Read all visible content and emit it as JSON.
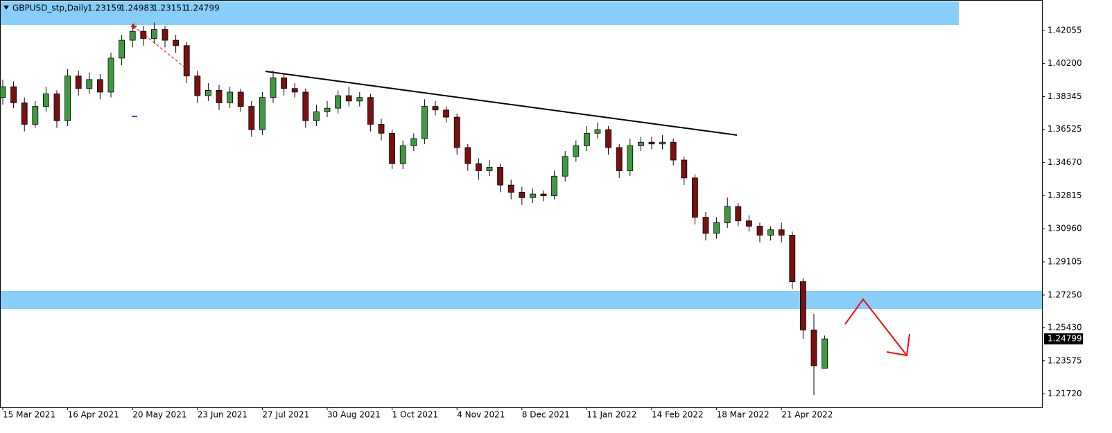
{
  "chart_data": {
    "type": "candlestick",
    "title": "GBPUSD_stp,Daily",
    "categories": [
      "15 Mar 2021",
      null,
      null,
      null,
      null,
      null,
      "16 Apr 2021",
      null,
      null,
      null,
      null,
      null,
      "20 May 2021",
      null,
      null,
      null,
      null,
      null,
      "23 Jun 2021",
      null,
      null,
      null,
      null,
      null,
      "27 Jul 2021",
      null,
      null,
      null,
      null,
      null,
      "30 Aug 2021",
      null,
      null,
      null,
      null,
      null,
      "1 Oct 2021",
      null,
      null,
      null,
      null,
      null,
      "4 Nov 2021",
      null,
      null,
      null,
      null,
      null,
      "8 Dec 2021",
      null,
      null,
      null,
      null,
      null,
      "11 Jan 2022",
      null,
      null,
      null,
      null,
      null,
      "14 Feb 2022",
      null,
      null,
      null,
      null,
      null,
      "18 Mar 2022",
      null,
      null,
      null,
      null,
      null,
      "21 Apr 2022",
      null,
      null,
      null,
      null
    ],
    "open": [
      1.383,
      1.389,
      1.38,
      1.368,
      1.378,
      1.385,
      1.37,
      1.395,
      1.388,
      1.393,
      1.386,
      1.405,
      1.415,
      1.42,
      1.416,
      1.421,
      1.415,
      1.412,
      1.395,
      1.384,
      1.387,
      1.38,
      1.386,
      1.378,
      1.365,
      1.383,
      1.394,
      1.388,
      1.386,
      1.37,
      1.375,
      1.377,
      1.384,
      1.381,
      1.383,
      1.368,
      1.363,
      1.346,
      1.356,
      1.36,
      1.378,
      1.376,
      1.372,
      1.355,
      1.346,
      1.342,
      1.344,
      1.334,
      1.33,
      1.327,
      1.329,
      1.328,
      1.339,
      1.35,
      1.356,
      1.363,
      1.365,
      1.355,
      1.342,
      1.356,
      1.358,
      1.357,
      1.358,
      1.348,
      1.338,
      1.316,
      1.307,
      1.313,
      1.322,
      1.314,
      1.311,
      1.306,
      1.309,
      1.306,
      1.28,
      1.253,
      1.23159
    ],
    "high": [
      1.393,
      1.392,
      1.383,
      1.381,
      1.389,
      1.387,
      1.399,
      1.398,
      1.397,
      1.396,
      1.408,
      1.418,
      1.424,
      1.423,
      1.4249,
      1.423,
      1.418,
      1.414,
      1.398,
      1.391,
      1.39,
      1.389,
      1.388,
      1.381,
      1.386,
      1.398,
      1.396,
      1.391,
      1.388,
      1.379,
      1.381,
      1.387,
      1.389,
      1.386,
      1.385,
      1.371,
      1.365,
      1.359,
      1.363,
      1.382,
      1.381,
      1.378,
      1.374,
      1.357,
      1.349,
      1.348,
      1.346,
      1.337,
      1.333,
      1.332,
      1.331,
      1.342,
      1.353,
      1.359,
      1.367,
      1.369,
      1.367,
      1.357,
      1.36,
      1.361,
      1.361,
      1.362,
      1.36,
      1.35,
      1.34,
      1.319,
      1.316,
      1.327,
      1.324,
      1.317,
      1.313,
      1.311,
      1.313,
      1.308,
      1.282,
      1.262,
      1.24983
    ],
    "low": [
      1.379,
      1.377,
      1.364,
      1.366,
      1.375,
      1.366,
      1.367,
      1.384,
      1.385,
      1.382,
      1.383,
      1.401,
      1.411,
      1.412,
      1.413,
      1.411,
      1.408,
      1.391,
      1.38,
      1.381,
      1.376,
      1.377,
      1.375,
      1.361,
      1.362,
      1.38,
      1.384,
      1.383,
      1.366,
      1.367,
      1.372,
      1.374,
      1.378,
      1.378,
      1.364,
      1.359,
      1.343,
      1.343,
      1.353,
      1.357,
      1.373,
      1.369,
      1.351,
      1.342,
      1.337,
      1.339,
      1.33,
      1.326,
      1.323,
      1.324,
      1.325,
      1.326,
      1.336,
      1.347,
      1.353,
      1.36,
      1.351,
      1.338,
      1.339,
      1.353,
      1.354,
      1.354,
      1.345,
      1.334,
      1.312,
      1.303,
      1.304,
      1.31,
      1.311,
      1.308,
      1.302,
      1.303,
      1.302,
      1.276,
      1.248,
      1.2166,
      1.23151
    ],
    "close": [
      1.389,
      1.38,
      1.368,
      1.378,
      1.385,
      1.37,
      1.395,
      1.388,
      1.393,
      1.386,
      1.405,
      1.415,
      1.42,
      1.416,
      1.421,
      1.415,
      1.412,
      1.395,
      1.384,
      1.387,
      1.38,
      1.386,
      1.378,
      1.365,
      1.383,
      1.394,
      1.388,
      1.386,
      1.37,
      1.375,
      1.377,
      1.384,
      1.381,
      1.383,
      1.368,
      1.363,
      1.346,
      1.356,
      1.36,
      1.378,
      1.376,
      1.372,
      1.355,
      1.346,
      1.342,
      1.344,
      1.334,
      1.33,
      1.327,
      1.329,
      1.328,
      1.339,
      1.35,
      1.356,
      1.363,
      1.365,
      1.355,
      1.342,
      1.356,
      1.358,
      1.357,
      1.358,
      1.348,
      1.338,
      1.316,
      1.307,
      1.313,
      1.322,
      1.314,
      1.311,
      1.306,
      1.309,
      1.306,
      1.28,
      1.253,
      1.233,
      1.24799
    ],
    "up_color": "#3f9a3f",
    "down_color": "#7a1010",
    "ylim": [
      1.2097,
      1.4375
    ],
    "yticks": [
      1.42055,
      {
        "value": 1.402,
        "label": "1.40200"
      },
      1.38345,
      1.36525,
      {
        "value": 1.3467,
        "label": "1.34670"
      },
      1.32815,
      {
        "value": 1.3096,
        "label": "1.30960"
      },
      1.29105,
      {
        "value": 1.2725,
        "label": "1.27250"
      },
      {
        "value": 1.2543,
        "label": "1.25430"
      },
      1.23575,
      {
        "value": 1.2172,
        "label": "1.21720"
      }
    ]
  }
}
